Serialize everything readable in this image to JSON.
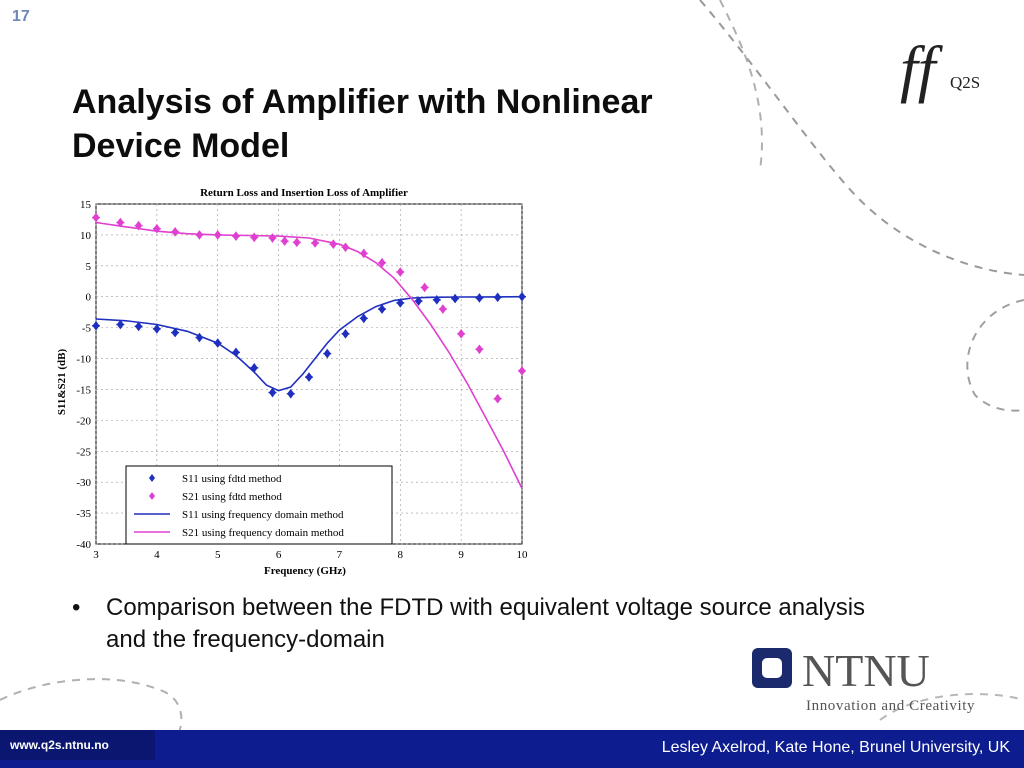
{
  "slide": {
    "number": "17",
    "title_line1": "Analysis of Amplifier with Nonlinear",
    "title_line2": "Device Model",
    "bullet": "Comparison between the FDTD with equivalent voltage source analysis and the frequency-domain",
    "footer_url": "www.q2s.ntnu.no",
    "footer_author": "Lesley Axelrod, Kate Hone, Brunel University, UK",
    "logo_q2s_text": "Q2S",
    "logo_ntnu_text": "NTNU",
    "logo_ntnu_tagline": "Innovation and Creativity",
    "colors": {
      "footer": "#0d1d8f",
      "ntnu_blue": "#1a2a6c",
      "deco_lines": "#9a9a9a"
    }
  },
  "chart_data": {
    "type": "line",
    "title": "Return Loss and Insertion Loss of Amplifier",
    "xlabel": "Frequency (GHz)",
    "ylabel": "S11&S21 (dB)",
    "xlim": [
      3,
      10
    ],
    "ylim": [
      -40,
      15
    ],
    "xticks": [
      3,
      4,
      5,
      6,
      7,
      8,
      9,
      10
    ],
    "yticks": [
      15,
      10,
      5,
      0,
      -5,
      -10,
      -15,
      -20,
      -25,
      -30,
      -35,
      -40
    ],
    "grid": true,
    "legend_position": "bottom-left",
    "series": [
      {
        "name": "S11 using fdtd method",
        "style": "markers",
        "color": "#1f2fbf",
        "x": [
          3.0,
          3.4,
          3.7,
          4.0,
          4.3,
          4.7,
          5.0,
          5.3,
          5.6,
          5.9,
          6.2,
          6.5,
          6.8,
          7.1,
          7.4,
          7.7,
          8.0,
          8.3,
          8.6,
          8.9,
          9.3,
          9.6,
          10.0
        ],
        "y": [
          -4.7,
          -4.5,
          -4.8,
          -5.2,
          -5.8,
          -6.6,
          -7.5,
          -9.0,
          -11.5,
          -15.5,
          -15.7,
          -13.0,
          -9.2,
          -6.0,
          -3.5,
          -2.0,
          -1.0,
          -0.7,
          -0.5,
          -0.3,
          -0.2,
          -0.1,
          0.0
        ]
      },
      {
        "name": "S21 using fdtd method",
        "style": "markers",
        "color": "#e040d0",
        "x": [
          3.0,
          3.4,
          3.7,
          4.0,
          4.3,
          4.7,
          5.0,
          5.3,
          5.6,
          5.9,
          6.1,
          6.3,
          6.6,
          6.9,
          7.1,
          7.4,
          7.7,
          8.0,
          8.4,
          8.7,
          9.0,
          9.3,
          9.6,
          10.0
        ],
        "y": [
          12.8,
          12.0,
          11.5,
          11.0,
          10.5,
          10.0,
          10.0,
          9.8,
          9.6,
          9.5,
          9.0,
          8.8,
          8.7,
          8.5,
          8.0,
          7.0,
          5.5,
          4.0,
          1.5,
          -2.0,
          -6.0,
          -8.5,
          -16.5,
          -12.0
        ]
      },
      {
        "name": "S11 using frequency domain method",
        "style": "line",
        "color": "#1f2fbf",
        "x": [
          3.0,
          3.5,
          4.0,
          4.5,
          5.0,
          5.3,
          5.6,
          5.8,
          6.0,
          6.2,
          6.4,
          6.6,
          6.8,
          7.0,
          7.3,
          7.6,
          7.9,
          8.2,
          8.5,
          9.0,
          9.5,
          10.0
        ],
        "y": [
          -3.6,
          -3.9,
          -4.5,
          -5.6,
          -7.5,
          -9.5,
          -12.2,
          -14.3,
          -15.2,
          -14.6,
          -12.5,
          -10.0,
          -7.5,
          -5.4,
          -3.2,
          -1.6,
          -0.6,
          -0.2,
          -0.1,
          -0.05,
          -0.02,
          0.0
        ]
      },
      {
        "name": "S21 using frequency domain method",
        "style": "line",
        "color": "#e040d0",
        "x": [
          3.0,
          3.5,
          4.0,
          4.5,
          5.0,
          5.5,
          6.0,
          6.5,
          7.0,
          7.3,
          7.6,
          7.9,
          8.2,
          8.5,
          8.8,
          9.1,
          9.4,
          9.7,
          10.0
        ],
        "y": [
          12.0,
          11.3,
          10.6,
          10.2,
          10.0,
          9.9,
          9.8,
          9.5,
          8.5,
          7.3,
          5.5,
          3.0,
          -0.5,
          -4.5,
          -9.0,
          -14.0,
          -19.5,
          -25.0,
          -31.0
        ]
      }
    ]
  }
}
